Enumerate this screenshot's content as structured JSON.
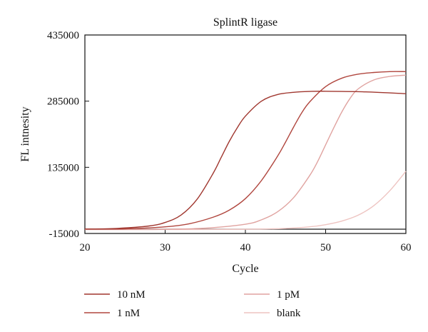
{
  "chart_data": {
    "type": "line",
    "title": "SplintR ligase",
    "xlabel": "Cycle",
    "ylabel": "FL intnesity",
    "xlim": [
      20,
      60
    ],
    "ylim": [
      -15000,
      435000
    ],
    "xticks": [
      20,
      30,
      40,
      50,
      60
    ],
    "yticks": [
      -15000,
      135000,
      285000,
      435000
    ],
    "grid": false,
    "legend_position": "bottom",
    "series": [
      {
        "name": "10 nM",
        "color": "#a0372f",
        "x": [
          20,
          24,
          28,
          30,
          32,
          34,
          36,
          37,
          38,
          39,
          40,
          42,
          44,
          46,
          48,
          50,
          55,
          60
        ],
        "y": [
          -5000,
          -3500,
          2000,
          10000,
          27000,
          63000,
          122000,
          158000,
          194000,
          225000,
          251000,
          285000,
          300000,
          305000,
          307000,
          307500,
          306000,
          302000
        ]
      },
      {
        "name": "1 nM",
        "color": "#b0463e",
        "x": [
          20,
          25,
          30,
          33,
          36,
          38,
          40,
          42,
          44,
          45,
          46,
          47,
          48,
          50,
          52,
          54,
          56,
          58,
          60
        ],
        "y": [
          -5000,
          -4500,
          0,
          7000,
          22000,
          38000,
          64000,
          105000,
          160000,
          192000,
          226000,
          258000,
          283000,
          318000,
          337000,
          346000,
          350000,
          352000,
          352000
        ]
      },
      {
        "name": "1 pM",
        "color": "#e0a3a0",
        "x": [
          20,
          25,
          30,
          35,
          40,
          42,
          44,
          46,
          48,
          49,
          50,
          51,
          52,
          53,
          54,
          56,
          58,
          60
        ],
        "y": [
          -6000,
          -6000,
          -5500,
          -3000,
          6000,
          16000,
          34000,
          66000,
          116000,
          148000,
          186000,
          224000,
          260000,
          290000,
          312000,
          333000,
          341000,
          344000
        ]
      },
      {
        "name": "blank",
        "color": "#eec4c1",
        "x": [
          20,
          30,
          40,
          45,
          48,
          50,
          52,
          54,
          56,
          58,
          60
        ],
        "y": [
          -6000,
          -6000,
          -5500,
          -3500,
          0,
          5000,
          13000,
          26000,
          48000,
          82000,
          126000
        ]
      }
    ]
  }
}
